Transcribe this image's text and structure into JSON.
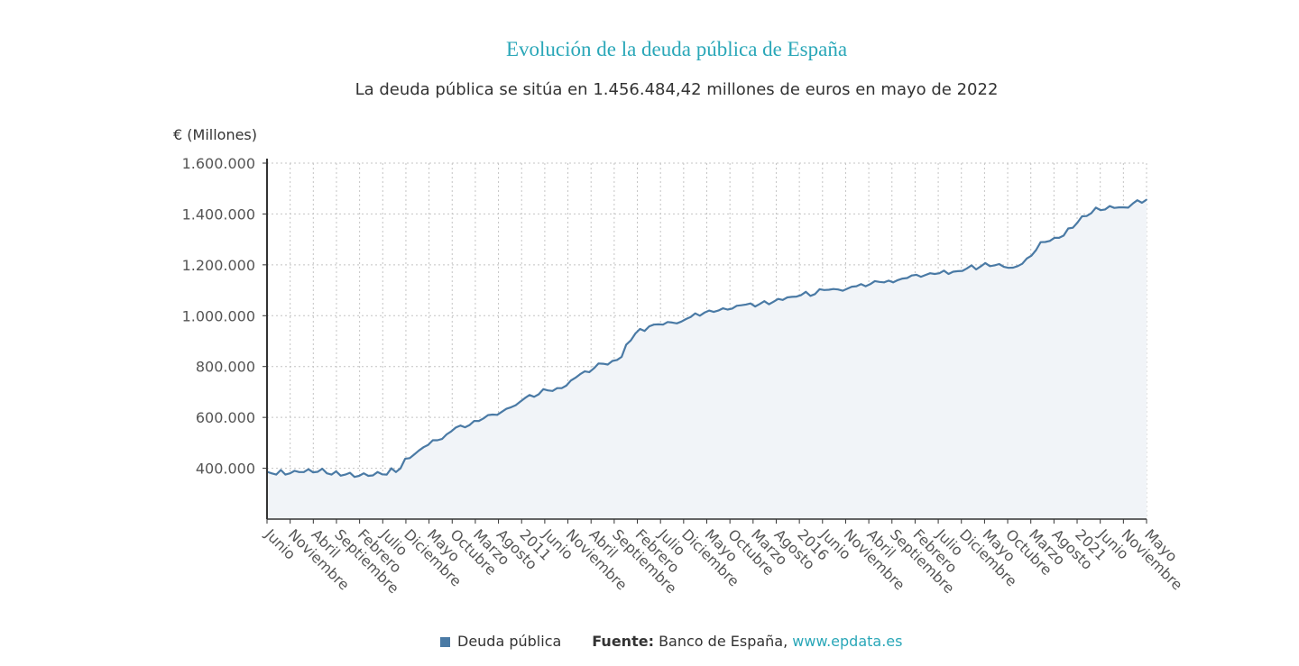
{
  "header": {
    "title": "Evolución de la deuda pública de España",
    "subtitle": "La deuda pública se sitúa en 1.456.484,42 millones de euros en mayo de 2022"
  },
  "footer": {
    "legend_label": "Deuda pública",
    "source_label": "Fuente:",
    "source_name": "Banco de España,",
    "source_link": "www.epdata.es"
  },
  "colors": {
    "line": "#4a7aa5",
    "fill": "#f1f4f8",
    "accent": "#2aa7b8"
  },
  "chart_data": {
    "type": "area",
    "ylabel": "€ (Millones)",
    "ylim": [
      200000,
      1600000
    ],
    "yticks": [
      400000,
      600000,
      800000,
      1000000,
      1200000,
      1400000,
      1600000
    ],
    "ytick_labels": [
      "400.000",
      "600.000",
      "800.000",
      "1.000.000",
      "1.200.000",
      "1.400.000",
      "1.600.000"
    ],
    "x_labels": [
      "Junio",
      "Noviembre",
      "Abril",
      "Septiembre",
      "Febrero",
      "Julio",
      "Diciembre",
      "Mayo",
      "Octubre",
      "Marzo",
      "Agosto",
      "2011",
      "Junio",
      "Noviembre",
      "Abril",
      "Septiembre",
      "Febrero",
      "Julio",
      "Diciembre",
      "Mayo",
      "Octubre",
      "Marzo",
      "Agosto",
      "2016",
      "Junio",
      "Noviembre",
      "Abril",
      "Septiembre",
      "Febrero",
      "Julio",
      "Diciembre",
      "Mayo",
      "Octubre",
      "Marzo",
      "Agosto",
      "2021",
      "Junio",
      "Noviembre",
      "Mayo"
    ],
    "series": [
      {
        "name": "Deuda pública",
        "values": [
          386000,
          380000,
          375000,
          393000,
          375000,
          380000,
          390000,
          385000,
          385000,
          396000,
          384000,
          386000,
          398000,
          380000,
          375000,
          388000,
          371000,
          375000,
          382000,
          366000,
          370000,
          380000,
          370000,
          372000,
          385000,
          376000,
          375000,
          400000,
          385000,
          400000,
          437000,
          440000,
          455000,
          470000,
          483000,
          492000,
          510000,
          510000,
          515000,
          533000,
          545000,
          560000,
          568000,
          561000,
          570000,
          586000,
          586000,
          596000,
          609000,
          611000,
          610000,
          622000,
          634000,
          640000,
          648000,
          662000,
          676000,
          688000,
          681000,
          691000,
          711000,
          706000,
          704000,
          715000,
          715000,
          725000,
          745000,
          756000,
          770000,
          781000,
          778000,
          793000,
          812000,
          811000,
          808000,
          822000,
          826000,
          838000,
          886000,
          903000,
          930000,
          948000,
          940000,
          958000,
          965000,
          966000,
          965000,
          975000,
          973000,
          970000,
          977000,
          987000,
          995000,
          1009000,
          1000000,
          1012000,
          1020000,
          1015000,
          1020000,
          1029000,
          1024000,
          1028000,
          1039000,
          1041000,
          1044000,
          1048000,
          1036000,
          1046000,
          1057000,
          1045000,
          1055000,
          1066000,
          1062000,
          1072000,
          1074000,
          1075000,
          1081000,
          1094000,
          1078000,
          1085000,
          1104000,
          1101000,
          1102000,
          1105000,
          1103000,
          1098000,
          1106000,
          1114000,
          1116000,
          1124000,
          1116000,
          1124000,
          1136000,
          1133000,
          1131000,
          1138000,
          1131000,
          1140000,
          1146000,
          1148000,
          1158000,
          1161000,
          1153000,
          1160000,
          1167000,
          1164000,
          1167000,
          1177000,
          1164000,
          1173000,
          1175000,
          1176000,
          1186000,
          1198000,
          1182000,
          1194000,
          1207000,
          1195000,
          1198000,
          1203000,
          1192000,
          1188000,
          1189000,
          1195000,
          1204000,
          1225000,
          1236000,
          1258000,
          1289000,
          1290000,
          1294000,
          1306000,
          1306000,
          1315000,
          1343000,
          1346000,
          1366000,
          1391000,
          1392000,
          1403000,
          1425000,
          1415000,
          1418000,
          1431000,
          1424000,
          1426000,
          1426000,
          1425000,
          1441000,
          1454000,
          1444000,
          1456484
        ]
      }
    ]
  }
}
